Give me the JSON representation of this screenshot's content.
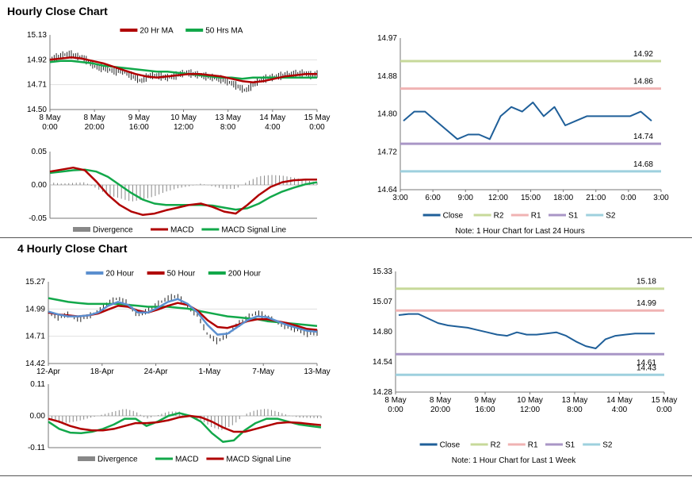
{
  "titles": {
    "hourly": "Hourly Close Chart",
    "four_hourly": "4 Hourly Close Chart"
  },
  "colors": {
    "close": "#1f5f99",
    "r2": "#c7d99a",
    "r1": "#f0b3b3",
    "s1": "#a996c6",
    "s2": "#9ed0de",
    "ma_red": "#b00000",
    "ma_green": "#12a84a",
    "ma_blue": "#5b8fcf",
    "divergence": "#888888"
  },
  "chart_data": [
    {
      "id": "hourly_price",
      "type": "line",
      "legend": [
        "20 Hr MA",
        "50 Hrs MA"
      ],
      "y_ticks": [
        "15.13",
        "14.92",
        "14.71",
        "14.50"
      ],
      "ylim": [
        14.5,
        15.13
      ],
      "x_ticks": [
        [
          "8 May",
          "0:00"
        ],
        [
          "8 May",
          "20:00"
        ],
        [
          "9 May",
          "16:00"
        ],
        [
          "10 May",
          "12:00"
        ],
        [
          "13 May",
          "8:00"
        ],
        [
          "14 May",
          "4:00"
        ],
        [
          "15 May",
          "0:00"
        ]
      ],
      "close": [
        14.92,
        14.94,
        14.96,
        14.97,
        14.95,
        14.94,
        14.9,
        14.86,
        14.85,
        14.84,
        14.82,
        14.83,
        14.8,
        14.77,
        14.74,
        14.78,
        14.79,
        14.78,
        14.77,
        14.78,
        14.8,
        14.81,
        14.8,
        14.79,
        14.78,
        14.77,
        14.76,
        14.74,
        14.72,
        14.69,
        14.66,
        14.7,
        14.74,
        14.76,
        14.77,
        14.78,
        14.79,
        14.8,
        14.8,
        14.81,
        14.79,
        14.8
      ],
      "ma20": [
        14.92,
        14.93,
        14.94,
        14.93,
        14.91,
        14.89,
        14.86,
        14.83,
        14.8,
        14.78,
        14.77,
        14.78,
        14.79,
        14.8,
        14.8,
        14.79,
        14.78,
        14.76,
        14.74,
        14.73,
        14.74,
        14.76,
        14.78,
        14.79,
        14.8,
        14.8
      ],
      "ma50": [
        14.9,
        14.91,
        14.91,
        14.9,
        14.89,
        14.87,
        14.86,
        14.85,
        14.84,
        14.83,
        14.82,
        14.82,
        14.81,
        14.8,
        14.79,
        14.78,
        14.77,
        14.77,
        14.76,
        14.77,
        14.77,
        14.77,
        14.77,
        14.77,
        14.77,
        14.77
      ]
    },
    {
      "id": "hourly_macd",
      "type": "line",
      "legend": [
        "Divergence",
        "MACD",
        "MACD Signal Line"
      ],
      "y_ticks": [
        "0.05",
        "0.00",
        "-0.05"
      ],
      "ylim": [
        -0.05,
        0.05
      ],
      "macd": [
        0.02,
        0.023,
        0.026,
        0.022,
        0.005,
        -0.015,
        -0.03,
        -0.04,
        -0.045,
        -0.043,
        -0.038,
        -0.034,
        -0.03,
        -0.028,
        -0.033,
        -0.04,
        -0.043,
        -0.03,
        -0.015,
        -0.003,
        0.004,
        0.007,
        0.008,
        0.008
      ],
      "signal": [
        0.018,
        0.02,
        0.022,
        0.023,
        0.02,
        0.012,
        0.0,
        -0.012,
        -0.022,
        -0.028,
        -0.03,
        -0.03,
        -0.03,
        -0.03,
        -0.031,
        -0.034,
        -0.037,
        -0.035,
        -0.028,
        -0.018,
        -0.01,
        -0.004,
        0.001,
        0.004
      ],
      "divergence": [
        0.004,
        0.002,
        0.003,
        0.004,
        -0.005,
        -0.015,
        -0.02,
        -0.025,
        -0.022,
        -0.017,
        -0.01,
        -0.005,
        -0.002,
        0.002,
        -0.002,
        -0.006,
        -0.006,
        0.005,
        0.013,
        0.015,
        0.014,
        0.011,
        0.007,
        0.004
      ]
    },
    {
      "id": "hourly_levels",
      "type": "line",
      "y_ticks": [
        "14.97",
        "14.88",
        "14.80",
        "14.72",
        "14.64"
      ],
      "ylim": [
        14.64,
        14.97
      ],
      "x_ticks": [
        "3:00",
        "6:00",
        "9:00",
        "12:00",
        "15:00",
        "18:00",
        "21:00",
        "0:00",
        "3:00"
      ],
      "close": [
        14.79,
        14.81,
        14.81,
        14.79,
        14.77,
        14.75,
        14.76,
        14.76,
        14.75,
        14.8,
        14.82,
        14.81,
        14.83,
        14.8,
        14.82,
        14.78,
        14.79,
        14.8,
        14.8,
        14.8,
        14.8,
        14.8,
        14.81,
        14.79
      ],
      "levels": [
        {
          "name": "R2",
          "value": 14.92,
          "label": "14.92"
        },
        {
          "name": "R1",
          "value": 14.86,
          "label": "14.86"
        },
        {
          "name": "S1",
          "value": 14.74,
          "label": "14.74"
        },
        {
          "name": "S2",
          "value": 14.68,
          "label": "14.68"
        }
      ],
      "legend": [
        "Close",
        "R2",
        "R1",
        "S1",
        "S2"
      ],
      "note": "Note: 1 Hour Chart for Last 24 Hours"
    },
    {
      "id": "four_hourly_price",
      "type": "line",
      "legend": [
        "20 Hour",
        "50 Hour",
        "200 Hour"
      ],
      "y_ticks": [
        "15.27",
        "14.99",
        "14.71",
        "14.42"
      ],
      "ylim": [
        14.42,
        15.27
      ],
      "x_ticks": [
        "12-Apr",
        "18-Apr",
        "24-Apr",
        "1-May",
        "7-May",
        "13-May"
      ],
      "close": [
        14.95,
        14.9,
        14.93,
        14.88,
        14.91,
        14.96,
        15.05,
        15.1,
        15.04,
        14.92,
        14.97,
        15.04,
        15.1,
        15.12,
        15.02,
        14.92,
        14.72,
        14.65,
        14.72,
        14.82,
        14.9,
        14.95,
        14.9,
        14.85,
        14.8,
        14.77,
        14.73,
        14.74
      ],
      "ma20": [
        14.96,
        14.93,
        14.91,
        14.91,
        14.92,
        14.95,
        15.02,
        15.06,
        15.03,
        14.95,
        14.95,
        15.0,
        15.06,
        15.09,
        15.04,
        14.95,
        14.82,
        14.72,
        14.73,
        14.8,
        14.87,
        14.91,
        14.9,
        14.86,
        14.82,
        14.79,
        14.76,
        14.75
      ],
      "ma50": [
        14.95,
        14.93,
        14.92,
        14.91,
        14.92,
        14.94,
        14.98,
        15.02,
        15.01,
        14.97,
        14.95,
        14.98,
        15.02,
        15.05,
        15.03,
        14.97,
        14.87,
        14.8,
        14.79,
        14.82,
        14.86,
        14.88,
        14.88,
        14.86,
        14.84,
        14.81,
        14.78,
        14.77
      ],
      "ma200": [
        15.1,
        15.08,
        15.06,
        15.05,
        15.04,
        15.04,
        15.04,
        15.04,
        15.03,
        15.02,
        15.01,
        15.01,
        15.01,
        15.0,
        14.99,
        14.97,
        14.95,
        14.93,
        14.91,
        14.9,
        14.89,
        14.88,
        14.86,
        14.85,
        14.84,
        14.83,
        14.82,
        14.81
      ]
    },
    {
      "id": "four_hourly_macd",
      "type": "line",
      "legend": [
        "Divergence",
        "MACD",
        "MACD Signal Line"
      ],
      "y_ticks": [
        "0.11",
        "0.00",
        "-0.11"
      ],
      "ylim": [
        -0.11,
        0.11
      ],
      "macd": [
        -0.02,
        -0.045,
        -0.058,
        -0.06,
        -0.055,
        -0.045,
        -0.03,
        -0.01,
        -0.01,
        -0.035,
        -0.02,
        0.0,
        0.01,
        0.0,
        -0.02,
        -0.06,
        -0.09,
        -0.085,
        -0.05,
        -0.025,
        -0.01,
        -0.01,
        -0.02,
        -0.03,
        -0.035,
        -0.04
      ],
      "signal": [
        -0.01,
        -0.02,
        -0.035,
        -0.045,
        -0.05,
        -0.05,
        -0.045,
        -0.035,
        -0.025,
        -0.025,
        -0.022,
        -0.015,
        -0.005,
        0.0,
        -0.005,
        -0.02,
        -0.04,
        -0.055,
        -0.055,
        -0.045,
        -0.035,
        -0.025,
        -0.022,
        -0.024,
        -0.028,
        -0.032
      ],
      "divergence": [
        -0.01,
        -0.025,
        -0.023,
        -0.015,
        -0.005,
        0.005,
        0.015,
        0.025,
        0.015,
        -0.01,
        0.002,
        0.015,
        0.015,
        0.0,
        -0.015,
        -0.04,
        -0.05,
        -0.03,
        0.005,
        0.02,
        0.025,
        0.015,
        0.002,
        -0.006,
        -0.007,
        -0.008
      ]
    },
    {
      "id": "four_hourly_levels",
      "type": "line",
      "y_ticks": [
        "15.33",
        "15.07",
        "14.80",
        "14.54",
        "14.28"
      ],
      "ylim": [
        14.28,
        15.33
      ],
      "x_ticks": [
        [
          "8 May",
          "0:00"
        ],
        [
          "8 May",
          "20:00"
        ],
        [
          "9 May",
          "16:00"
        ],
        [
          "10 May",
          "12:00"
        ],
        [
          "13 May",
          "8:00"
        ],
        [
          "14 May",
          "4:00"
        ],
        [
          "15 May",
          "0:00"
        ]
      ],
      "close": [
        14.95,
        14.96,
        14.96,
        14.92,
        14.88,
        14.86,
        14.85,
        14.84,
        14.82,
        14.8,
        14.78,
        14.77,
        14.8,
        14.78,
        14.78,
        14.79,
        14.8,
        14.77,
        14.72,
        14.68,
        14.66,
        14.74,
        14.77,
        14.78,
        14.79,
        14.79,
        14.79
      ],
      "levels": [
        {
          "name": "R2",
          "value": 15.18,
          "label": "15.18"
        },
        {
          "name": "R1",
          "value": 14.99,
          "label": "14.99"
        },
        {
          "name": "S1",
          "value": 14.61,
          "label": "14.61"
        },
        {
          "name": "S2",
          "value": 14.43,
          "label": "14.43"
        }
      ],
      "legend": [
        "Close",
        "R2",
        "R1",
        "S1",
        "S2"
      ],
      "note": "Note: 1 Hour Chart for Last 1 Week"
    }
  ]
}
